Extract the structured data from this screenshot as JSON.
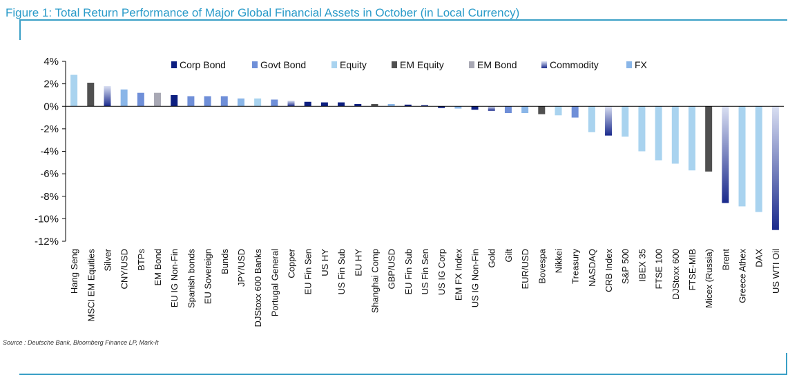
{
  "figure": {
    "title": "Figure 1: Total Return Performance of Major Global Financial Assets in October (in Local Currency)",
    "source": "Source : Deutsche Bank, Bloomberg Finance LP, Mark-It"
  },
  "colors": {
    "title": "#2a9bc9",
    "frame": "#3a9fc6",
    "Corp Bond": "#0d1f80",
    "Govt Bond": "#6f8fd8",
    "Equity": "#a9d3ef",
    "EM Equity": "#505050",
    "EM Bond": "#a8a8b4",
    "Commodity": "#1a2a8c",
    "FX": "#8ab6e8"
  },
  "chart_data": {
    "type": "bar",
    "title": "Figure 1: Total Return Performance of Major Global Financial Assets in October (in Local Currency)",
    "xlabel": "",
    "ylabel": "",
    "ylim": [
      -12,
      4
    ],
    "yticks": [
      4,
      2,
      0,
      -2,
      -4,
      -6,
      -8,
      -10,
      -12
    ],
    "ytick_labels": [
      "4%",
      "2%",
      "0%",
      "-2%",
      "-4%",
      "-6%",
      "-8%",
      "-10%",
      "-12%"
    ],
    "legend": [
      "Corp Bond",
      "Govt Bond",
      "Equity",
      "EM Equity",
      "EM Bond",
      "Commodity",
      "FX"
    ],
    "legend_position": "top",
    "categories": [
      "Hang Seng",
      "MSCI EM Equities",
      "Silver",
      "CNY/USD",
      "BTPs",
      "EM Bond",
      "EU IG Non-Fin",
      "Spanish bonds",
      "EU Sovereign",
      "Bunds",
      "JPY/USD",
      "DJStoxx 600 Banks",
      "Portugal General",
      "Copper",
      "EU Fin Sen",
      "US HY",
      "US Fin Sub",
      "EU HY",
      "Shanghai Comp",
      "GBP/USD",
      "EU Fin Sub",
      "US Fin Sen",
      "US IG Corp",
      "EM FX Index",
      "US IG Non-Fin",
      "Gold",
      "Gilt",
      "EUR/USD",
      "Bovespa",
      "Nikkei",
      "Treasury",
      "NASDAQ",
      "CRB Index",
      "S&P 500",
      "IBEX 35",
      "FTSE 100",
      "DJStoxx 600",
      "FTSE-MIB",
      "Micex (Russia)",
      "Brent",
      "Greece Athex",
      "DAX",
      "US WTI Oil"
    ],
    "values": [
      2.8,
      2.1,
      1.8,
      1.5,
      1.2,
      1.2,
      1.0,
      0.9,
      0.9,
      0.9,
      0.7,
      0.7,
      0.6,
      0.5,
      0.4,
      0.35,
      0.35,
      0.2,
      0.2,
      0.2,
      0.15,
      0.1,
      -0.15,
      -0.2,
      -0.3,
      -0.4,
      -0.6,
      -0.6,
      -0.7,
      -0.8,
      -1.0,
      -2.3,
      -2.6,
      -2.7,
      -4.0,
      -4.8,
      -5.1,
      -5.7,
      -5.8,
      -8.6,
      -8.9,
      -9.4,
      -11.0
    ],
    "asset_class": [
      "Equity",
      "EM Equity",
      "Commodity",
      "FX",
      "Govt Bond",
      "EM Bond",
      "Corp Bond",
      "Govt Bond",
      "Govt Bond",
      "Govt Bond",
      "FX",
      "Equity",
      "Govt Bond",
      "Commodity",
      "Corp Bond",
      "Corp Bond",
      "Corp Bond",
      "Corp Bond",
      "EM Equity",
      "FX",
      "Corp Bond",
      "Corp Bond",
      "Corp Bond",
      "FX",
      "Corp Bond",
      "Commodity",
      "Govt Bond",
      "FX",
      "EM Equity",
      "Equity",
      "Govt Bond",
      "Equity",
      "Commodity",
      "Equity",
      "Equity",
      "Equity",
      "Equity",
      "Equity",
      "EM Equity",
      "Commodity",
      "Equity",
      "Equity",
      "Commodity"
    ],
    "grid": false
  }
}
